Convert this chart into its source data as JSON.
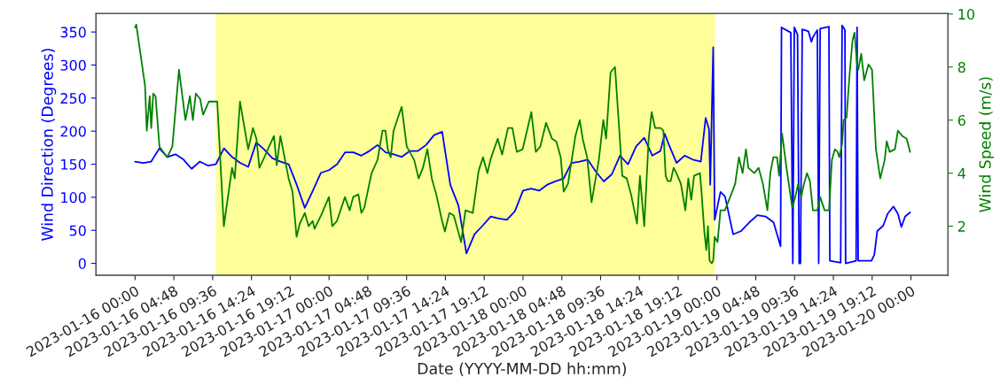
{
  "chart_data": {
    "type": "line",
    "xlabel": "Date (YYYY-MM-DD hh:mm)",
    "ylabel": "Wind Direction (Degrees)",
    "y2label": "Wind Speed (m/s)",
    "xlim": [
      "2023-01-15T19:10",
      "2023-01-20T04:35"
    ],
    "xticks": [
      {
        "value": "2023-01-16T00:00",
        "label": "2023-01-16 00:00"
      },
      {
        "value": "2023-01-16T04:48",
        "label": "2023-01-16 04:48"
      },
      {
        "value": "2023-01-16T09:36",
        "label": "2023-01-16 09:36"
      },
      {
        "value": "2023-01-16T14:24",
        "label": "2023-01-16 14:24"
      },
      {
        "value": "2023-01-16T19:12",
        "label": "2023-01-16 19:12"
      },
      {
        "value": "2023-01-17T00:00",
        "label": "2023-01-17 00:00"
      },
      {
        "value": "2023-01-17T04:48",
        "label": "2023-01-17 04:48"
      },
      {
        "value": "2023-01-17T09:36",
        "label": "2023-01-17 09:36"
      },
      {
        "value": "2023-01-17T14:24",
        "label": "2023-01-17 14:24"
      },
      {
        "value": "2023-01-17T19:12",
        "label": "2023-01-17 19:12"
      },
      {
        "value": "2023-01-18T00:00",
        "label": "2023-01-18 00:00"
      },
      {
        "value": "2023-01-18T04:48",
        "label": "2023-01-18 04:48"
      },
      {
        "value": "2023-01-18T09:36",
        "label": "2023-01-18 09:36"
      },
      {
        "value": "2023-01-18T14:24",
        "label": "2023-01-18 14:24"
      },
      {
        "value": "2023-01-18T19:12",
        "label": "2023-01-18 19:12"
      },
      {
        "value": "2023-01-19T00:00",
        "label": "2023-01-19 00:00"
      },
      {
        "value": "2023-01-19T04:48",
        "label": "2023-01-19 04:48"
      },
      {
        "value": "2023-01-19T09:36",
        "label": "2023-01-19 09:36"
      },
      {
        "value": "2023-01-19T14:24",
        "label": "2023-01-19 14:24"
      },
      {
        "value": "2023-01-19T19:12",
        "label": "2023-01-19 19:12"
      },
      {
        "value": "2023-01-20T00:00",
        "label": "2023-01-20 00:00"
      }
    ],
    "ylim": [
      -18,
      378
    ],
    "yticks": [
      0,
      50,
      100,
      150,
      200,
      250,
      300,
      350
    ],
    "y2lim": [
      0.15,
      10.02
    ],
    "y2ticks": [
      2,
      4,
      6,
      8,
      10
    ],
    "grid": false,
    "legend": false,
    "bands": [
      {
        "axis": "x",
        "from": "2023-01-16T10:00",
        "to": "2023-01-18T23:45",
        "color": "#ffff99"
      }
    ],
    "series": [
      {
        "color": "#0000ff",
        "axis": "y",
        "x": [
          "2023-01-16T00:00",
          "2023-01-16T01:00",
          "2023-01-16T02:00",
          "2023-01-16T03:00",
          "2023-01-16T04:00",
          "2023-01-16T05:00",
          "2023-01-16T06:00",
          "2023-01-16T07:00",
          "2023-01-16T08:00",
          "2023-01-16T09:00",
          "2023-01-16T10:00",
          "2023-01-16T11:00",
          "2023-01-16T12:00",
          "2023-01-16T13:00",
          "2023-01-16T14:00",
          "2023-01-16T15:00",
          "2023-01-16T16:00",
          "2023-01-16T17:00",
          "2023-01-16T18:00",
          "2023-01-16T19:00",
          "2023-01-16T20:00",
          "2023-01-16T21:00",
          "2023-01-16T22:00",
          "2023-01-16T23:00",
          "2023-01-17T00:00",
          "2023-01-17T01:00",
          "2023-01-17T02:00",
          "2023-01-17T03:00",
          "2023-01-17T04:00",
          "2023-01-17T05:00",
          "2023-01-17T06:00",
          "2023-01-17T07:00",
          "2023-01-17T08:00",
          "2023-01-17T09:00",
          "2023-01-17T10:00",
          "2023-01-17T11:00",
          "2023-01-17T12:00",
          "2023-01-17T13:00",
          "2023-01-17T14:00",
          "2023-01-17T15:00",
          "2023-01-17T16:00",
          "2023-01-17T17:00",
          "2023-01-17T18:00",
          "2023-01-17T19:00",
          "2023-01-17T20:00",
          "2023-01-17T21:00",
          "2023-01-17T22:00",
          "2023-01-17T23:00",
          "2023-01-18T00:00",
          "2023-01-18T01:00",
          "2023-01-18T02:00",
          "2023-01-18T03:00",
          "2023-01-18T04:00",
          "2023-01-18T05:00",
          "2023-01-18T06:00",
          "2023-01-18T07:00",
          "2023-01-18T08:00",
          "2023-01-18T09:00",
          "2023-01-18T10:00",
          "2023-01-18T11:00",
          "2023-01-18T12:00",
          "2023-01-18T13:00",
          "2023-01-18T14:00",
          "2023-01-18T15:00",
          "2023-01-18T16:00",
          "2023-01-18T17:00",
          "2023-01-18T17:32",
          "2023-01-18T18:00",
          "2023-01-18T19:00",
          "2023-01-18T20:00",
          "2023-01-18T21:00",
          "2023-01-18T22:00",
          "2023-01-18T22:36",
          "2023-01-18T23:01",
          "2023-01-18T23:10",
          "2023-01-18T23:32",
          "2023-01-18T23:43",
          "2023-01-19T00:26",
          "2023-01-19T01:00",
          "2023-01-19T02:00",
          "2023-01-19T03:00",
          "2023-01-19T04:00",
          "2023-01-19T05:00",
          "2023-01-19T06:00",
          "2023-01-19T07:00",
          "2023-01-19T07:52",
          "2023-01-19T07:59",
          "2023-01-19T09:08",
          "2023-01-19T09:23",
          "2023-01-19T09:34",
          "2023-01-19T09:58",
          "2023-01-19T10:10",
          "2023-01-19T10:20",
          "2023-01-19T10:33",
          "2023-01-19T11:19",
          "2023-01-19T11:41",
          "2023-01-19T11:52",
          "2023-01-19T12:25",
          "2023-01-19T12:35",
          "2023-01-19T12:46",
          "2023-01-19T13:51",
          "2023-01-19T13:58",
          "2023-01-19T15:18",
          "2023-01-19T15:29",
          "2023-01-19T15:50",
          "2023-01-19T15:55",
          "2023-01-19T17:13",
          "2023-01-19T17:20",
          "2023-01-19T17:28",
          "2023-01-19T19:07",
          "2023-01-19T19:28",
          "2023-01-19T19:50",
          "2023-01-19T20:34",
          "2023-01-19T21:07",
          "2023-01-19T21:50",
          "2023-01-19T22:23",
          "2023-01-19T22:49",
          "2023-01-19T23:17",
          "2023-01-19T23:54"
        ],
        "values": [
          154,
          152,
          154,
          174,
          161,
          165,
          157,
          143,
          154,
          148,
          150,
          174,
          161,
          152,
          146,
          183,
          172,
          159,
          154,
          150,
          119,
          84,
          110,
          137,
          141,
          150,
          168,
          168,
          163,
          170,
          179,
          168,
          165,
          161,
          170,
          170,
          179,
          194,
          199,
          119,
          88,
          15,
          44,
          57,
          71,
          68,
          66,
          79,
          110,
          113,
          110,
          119,
          124,
          128,
          152,
          154,
          157,
          139,
          124,
          135,
          163,
          150,
          177,
          190,
          163,
          170,
          196,
          181,
          152,
          163,
          157,
          154,
          220,
          203,
          119,
          327,
          66,
          108,
          101,
          44,
          49,
          62,
          73,
          71,
          62,
          26,
          357,
          349,
          0,
          357,
          346,
          0,
          0,
          354,
          351,
          335,
          342,
          353,
          0,
          355,
          358,
          4,
          1,
          360,
          353,
          0,
          4,
          357,
          4,
          4,
          13,
          49,
          57,
          75,
          86,
          75,
          55,
          71,
          77
        ]
      },
      {
        "color": "#008000",
        "axis": "y2",
        "x": [
          "2023-01-16T00:00",
          "2023-01-16T00:09",
          "2023-01-16T01:14",
          "2023-01-16T01:27",
          "2023-01-16T01:49",
          "2023-01-16T02:00",
          "2023-01-16T02:15",
          "2023-01-16T02:32",
          "2023-01-16T03:01",
          "2023-01-16T03:59",
          "2023-01-16T04:37",
          "2023-01-16T05:26",
          "2023-01-16T06:14",
          "2023-01-16T06:47",
          "2023-01-16T07:09",
          "2023-01-16T07:31",
          "2023-01-16T08:03",
          "2023-01-16T08:25",
          "2023-01-16T09:08",
          "2023-01-16T10:10",
          "2023-01-16T10:59",
          "2023-01-16T12:00",
          "2023-01-16T12:20",
          "2023-01-16T12:59",
          "2023-01-16T13:29",
          "2023-01-16T14:00",
          "2023-01-16T14:35",
          "2023-01-16T15:01",
          "2023-01-16T15:23",
          "2023-01-16T16:00",
          "2023-01-16T16:35",
          "2023-01-16T17:11",
          "2023-01-16T17:32",
          "2023-01-16T17:59",
          "2023-01-16T19:00",
          "2023-01-16T19:29",
          "2023-01-16T19:59",
          "2023-01-16T20:23",
          "2023-01-16T21:00",
          "2023-01-16T21:28",
          "2023-01-16T21:59",
          "2023-01-16T22:12",
          "2023-01-16T23:00",
          "2023-01-16T23:59",
          "2023-01-17T00:24",
          "2023-01-17T00:59",
          "2023-01-17T01:58",
          "2023-01-17T02:33",
          "2023-01-17T02:59",
          "2023-01-17T03:38",
          "2023-01-17T04:00",
          "2023-01-17T04:22",
          "2023-01-17T04:59",
          "2023-01-17T05:16",
          "2023-01-17T06:00",
          "2023-01-17T06:37",
          "2023-01-17T06:59",
          "2023-01-17T07:16",
          "2023-01-17T07:38",
          "2023-01-17T07:59",
          "2023-01-17T08:32",
          "2023-01-17T08:59",
          "2023-01-17T09:37",
          "2023-01-17T10:32",
          "2023-01-17T11:05",
          "2023-01-17T11:37",
          "2023-01-17T12:10",
          "2023-01-17T12:43",
          "2023-01-17T13:16",
          "2023-01-17T13:59",
          "2023-01-17T14:20",
          "2023-01-17T14:53",
          "2023-01-17T15:26",
          "2023-01-17T15:59",
          "2023-01-17T16:20",
          "2023-01-17T16:53",
          "2023-01-17T17:47",
          "2023-01-17T18:31",
          "2023-01-17T19:03",
          "2023-01-17T19:36",
          "2023-01-17T19:58",
          "2023-01-17T20:52",
          "2023-01-17T21:25",
          "2023-01-17T22:08",
          "2023-01-17T22:41",
          "2023-01-17T23:14",
          "2023-01-17T23:57",
          "2023-01-18T01:02",
          "2023-01-18T01:35",
          "2023-01-18T02:08",
          "2023-01-18T02:51",
          "2023-01-18T03:35",
          "2023-01-18T04:07",
          "2023-01-18T04:40",
          "2023-01-18T05:02",
          "2023-01-18T05:34",
          "2023-01-18T06:29",
          "2023-01-18T07:01",
          "2023-01-18T07:23",
          "2023-01-18T07:56",
          "2023-01-18T08:29",
          "2023-01-18T09:23",
          "2023-01-18T09:56",
          "2023-01-18T10:17",
          "2023-01-18T10:50",
          "2023-01-18T11:23",
          "2023-01-18T11:55",
          "2023-01-18T12:17",
          "2023-01-18T12:50",
          "2023-01-18T13:22",
          "2023-01-18T14:06",
          "2023-01-18T14:28",
          "2023-01-18T15:00",
          "2023-01-18T15:33",
          "2023-01-18T15:55",
          "2023-01-18T16:21",
          "2023-01-18T17:00",
          "2023-01-18T17:22",
          "2023-01-18T17:39",
          "2023-01-18T17:55",
          "2023-01-18T18:16",
          "2023-01-18T18:38",
          "2023-01-18T18:59",
          "2023-01-18T19:32",
          "2023-01-18T20:05",
          "2023-01-18T20:27",
          "2023-01-18T20:49",
          "2023-01-18T21:10",
          "2023-01-18T21:54",
          "2023-01-18T22:05",
          "2023-01-18T22:26",
          "2023-01-18T22:41",
          "2023-01-18T22:53",
          "2023-01-18T23:05",
          "2023-01-18T23:21",
          "2023-01-18T23:32",
          "2023-01-18T23:43",
          "2023-01-19T00:04",
          "2023-01-19T00:26",
          "2023-01-19T00:59",
          "2023-01-19T01:53",
          "2023-01-19T02:15",
          "2023-01-19T02:43",
          "2023-01-19T03:10",
          "2023-01-19T03:35",
          "2023-01-19T03:53",
          "2023-01-19T04:37",
          "2023-01-19T05:09",
          "2023-01-19T05:41",
          "2023-01-19T06:14",
          "2023-01-19T06:36",
          "2023-01-19T06:58",
          "2023-01-19T07:26",
          "2023-01-19T07:41",
          "2023-01-19T08:03",
          "2023-01-19T08:36",
          "2023-01-19T09:19",
          "2023-01-19T09:41",
          "2023-01-19T10:03",
          "2023-01-19T10:25",
          "2023-01-19T10:46",
          "2023-01-19T11:08",
          "2023-01-19T11:30",
          "2023-01-19T11:52",
          "2023-01-19T12:25",
          "2023-01-19T12:46",
          "2023-01-19T13:19",
          "2023-01-19T13:52",
          "2023-01-19T14:13",
          "2023-01-19T14:35",
          "2023-01-19T14:56",
          "2023-01-19T15:08",
          "2023-01-19T15:29",
          "2023-01-19T15:40",
          "2023-01-19T16:02",
          "2023-01-19T16:24",
          "2023-01-19T16:46",
          "2023-01-19T17:01",
          "2023-01-19T17:18",
          "2023-01-19T17:29",
          "2023-01-19T17:51",
          "2023-01-19T18:13",
          "2023-01-19T18:45",
          "2023-01-19T19:11",
          "2023-01-19T19:40",
          "2023-01-19T20:12",
          "2023-01-19T20:45",
          "2023-01-19T21:00",
          "2023-01-19T21:22",
          "2023-01-19T22:01",
          "2023-01-19T22:23",
          "2023-01-19T22:56",
          "2023-01-19T23:28",
          "2023-01-19T23:54"
        ],
        "values": [
          9.5,
          9.6,
          7.3,
          5.6,
          6.9,
          5.7,
          7.0,
          6.9,
          5.0,
          4.6,
          5.0,
          7.9,
          6.0,
          6.9,
          6.0,
          7.0,
          6.8,
          6.2,
          6.7,
          6.7,
          2.0,
          4.2,
          3.8,
          6.7,
          5.8,
          4.9,
          5.7,
          5.3,
          4.2,
          4.6,
          5.0,
          5.4,
          4.3,
          5.4,
          3.8,
          3.3,
          1.6,
          2.1,
          2.5,
          2.0,
          2.2,
          1.9,
          2.4,
          3.1,
          2.0,
          2.2,
          3.1,
          2.6,
          3.1,
          3.2,
          2.5,
          2.7,
          3.6,
          4.0,
          4.5,
          5.6,
          5.6,
          4.9,
          4.6,
          5.6,
          6.1,
          6.5,
          5.0,
          4.5,
          3.8,
          4.2,
          4.9,
          3.8,
          3.2,
          2.2,
          1.8,
          2.5,
          2.4,
          1.8,
          1.4,
          2.6,
          2.5,
          4.1,
          4.6,
          4.0,
          4.5,
          5.3,
          4.7,
          5.7,
          5.7,
          4.8,
          4.9,
          6.3,
          4.8,
          5.0,
          5.9,
          5.3,
          5.2,
          4.6,
          3.3,
          3.6,
          5.4,
          6.0,
          5.3,
          4.6,
          2.9,
          4.5,
          6.0,
          5.3,
          7.8,
          8.0,
          5.6,
          3.9,
          3.8,
          3.2,
          2.1,
          3.9,
          2.0,
          5.3,
          6.3,
          5.7,
          5.7,
          5.6,
          3.9,
          3.7,
          3.7,
          4.2,
          4.0,
          3.6,
          2.6,
          3.8,
          3.0,
          3.9,
          4.0,
          3.3,
          1.8,
          1.1,
          2.0,
          0.7,
          0.6,
          0.7,
          1.6,
          1.4,
          2.6,
          2.6,
          3.3,
          3.6,
          4.6,
          4.0,
          4.9,
          4.2,
          4.0,
          4.2,
          3.6,
          2.6,
          4.0,
          4.6,
          4.6,
          3.9,
          5.5,
          4.2,
          2.7,
          3.1,
          3.6,
          3.1,
          3.6,
          4.0,
          3.7,
          2.6,
          2.6,
          3.1,
          2.6,
          2.6,
          4.5,
          4.9,
          4.8,
          4.6,
          5.1,
          6.0,
          6.1,
          7.7,
          9.0,
          9.3,
          8.2,
          7.9,
          8.5,
          7.5,
          8.1,
          7.9,
          4.9,
          3.8,
          4.5,
          5.2,
          4.8,
          4.9,
          5.6,
          5.4,
          5.3,
          4.8
        ]
      }
    ]
  }
}
